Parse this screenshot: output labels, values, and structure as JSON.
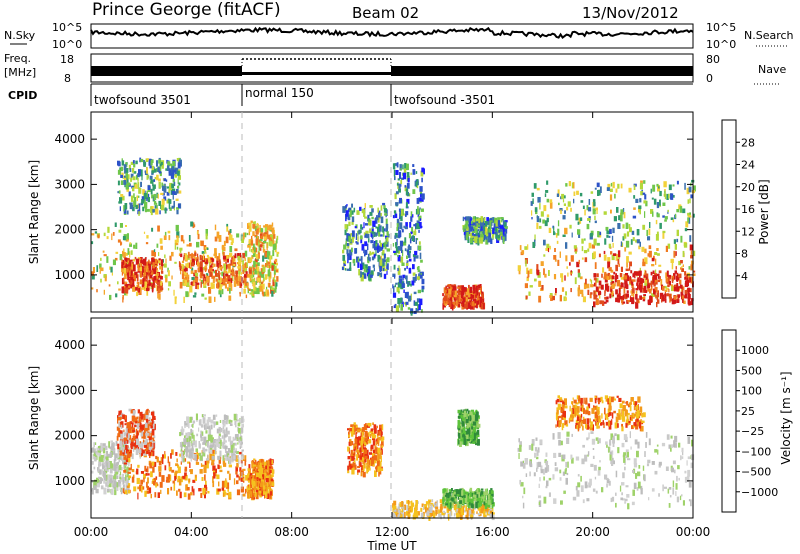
{
  "header": {
    "station": "Prince George (fitACF)",
    "beam": "Beam 02",
    "date": "13/Nov/2012"
  },
  "summary_panels": {
    "nsky_label": "N.Sky",
    "nsky_ticks": [
      "10^5",
      "10^0"
    ],
    "nsearch_label": "N.Search",
    "freq_label": "Freq.",
    "freq_unit": "[MHz]",
    "freq_ticks": [
      "18",
      "8"
    ],
    "nave_ticks": [
      "80",
      "0"
    ],
    "nave_label": "Nave",
    "cpid_label": "CPID",
    "cpid_segments": [
      {
        "label": "twofsound 3501",
        "start_hour": 0,
        "end_hour": 6
      },
      {
        "label": "normal 150",
        "start_hour": 6,
        "end_hour": 12
      },
      {
        "label": "twofsound -3501",
        "start_hour": 12,
        "end_hour": 24
      }
    ]
  },
  "chart_data": [
    {
      "type": "heatmap",
      "id": "power",
      "xlabel": "",
      "ylabel": "Slant Range [km]",
      "xlim": [
        0,
        24
      ],
      "ylim": [
        180,
        4600
      ],
      "y_ticks": [
        1000,
        2000,
        3000,
        4000
      ],
      "x_ticks_hours": [
        0,
        4,
        8,
        12,
        16,
        20,
        24
      ],
      "colorbar": {
        "label": "Power [dB]",
        "ticks": [
          "28",
          "24",
          "20",
          "16",
          "12",
          "8",
          "4"
        ],
        "colors": [
          "#1a1aff",
          "#2c52c8",
          "#3a6fae",
          "#2f9a6a",
          "#6fc64a",
          "#b4d83a",
          "#f2d23a",
          "#f5a42a",
          "#f07a20",
          "#e04a1c",
          "#d21818"
        ]
      },
      "echo_regions": [
        {
          "t0": 0.0,
          "t1": 6.2,
          "r0": 500,
          "r1": 2200,
          "level": 0.55
        },
        {
          "t0": 1.2,
          "t1": 2.8,
          "r0": 700,
          "r1": 1400,
          "level": 0.85
        },
        {
          "t0": 3.5,
          "t1": 6.2,
          "r0": 800,
          "r1": 1500,
          "level": 0.75
        },
        {
          "t0": 1.0,
          "t1": 3.5,
          "r0": 2400,
          "r1": 3600,
          "level": 0.35
        },
        {
          "t0": 6.2,
          "t1": 7.4,
          "r0": 600,
          "r1": 2200,
          "level": 0.6
        },
        {
          "t0": 10.0,
          "t1": 11.8,
          "r0": 1000,
          "r1": 2600,
          "level": 0.3
        },
        {
          "t0": 12.0,
          "t1": 13.2,
          "r0": 200,
          "r1": 3500,
          "level": 0.25
        },
        {
          "t0": 14.0,
          "t1": 15.6,
          "r0": 350,
          "r1": 800,
          "level": 0.9
        },
        {
          "t0": 14.8,
          "t1": 16.5,
          "r0": 1800,
          "r1": 2300,
          "level": 0.3
        },
        {
          "t0": 17.0,
          "t1": 24.0,
          "r0": 500,
          "r1": 1700,
          "level": 0.7
        },
        {
          "t0": 20.0,
          "t1": 24.0,
          "r0": 400,
          "r1": 1100,
          "level": 0.95
        },
        {
          "t0": 17.5,
          "t1": 24.0,
          "r0": 1700,
          "r1": 3100,
          "level": 0.4
        }
      ]
    },
    {
      "type": "heatmap",
      "id": "velocity",
      "xlabel": "Time UT",
      "ylabel": "Slant Range [km]",
      "xlim": [
        0,
        24
      ],
      "ylim": [
        180,
        4600
      ],
      "y_ticks": [
        1000,
        2000,
        3000,
        4000
      ],
      "x_ticks_hours": [
        0,
        4,
        8,
        12,
        16,
        20,
        24
      ],
      "x_tick_labels": [
        "00:00",
        "04:00",
        "08:00",
        "12:00",
        "16:00",
        "20:00",
        "00:00"
      ],
      "colorbar": {
        "label": "Velocity [m s⁻¹]",
        "ticks": [
          "1000",
          "500",
          "100",
          "25",
          "−25",
          "−100",
          "−500",
          "−1000"
        ],
        "colors": [
          "#1b1bd6",
          "#2a4fa8",
          "#2f8a3a",
          "#5cc23a",
          "#c8c8c8",
          "#f5c21e",
          "#f39a1a",
          "#f06a14",
          "#e83010"
        ]
      },
      "echo_regions": [
        {
          "t0": 0.0,
          "t1": 1.5,
          "r0": 800,
          "r1": 1900,
          "cls": "gray"
        },
        {
          "t0": 1.2,
          "t1": 6.2,
          "r0": 700,
          "r1": 1700,
          "cls": "orange"
        },
        {
          "t0": 1.0,
          "t1": 2.5,
          "r0": 1600,
          "r1": 2600,
          "cls": "red"
        },
        {
          "t0": 3.5,
          "t1": 6.0,
          "r0": 1500,
          "r1": 2500,
          "cls": "gray"
        },
        {
          "t0": 6.2,
          "t1": 7.2,
          "r0": 700,
          "r1": 1500,
          "cls": "orange"
        },
        {
          "t0": 10.2,
          "t1": 11.6,
          "r0": 1200,
          "r1": 2300,
          "cls": "orange"
        },
        {
          "t0": 12.0,
          "t1": 16.0,
          "r0": 250,
          "r1": 600,
          "cls": "yellow"
        },
        {
          "t0": 14.0,
          "t1": 16.0,
          "r0": 500,
          "r1": 850,
          "cls": "green"
        },
        {
          "t0": 14.6,
          "t1": 15.4,
          "r0": 1900,
          "r1": 2600,
          "cls": "green"
        },
        {
          "t0": 17.0,
          "t1": 24.0,
          "r0": 500,
          "r1": 2100,
          "cls": "gray"
        },
        {
          "t0": 18.5,
          "t1": 22.0,
          "r0": 2200,
          "r1": 2900,
          "cls": "orange"
        }
      ]
    }
  ]
}
